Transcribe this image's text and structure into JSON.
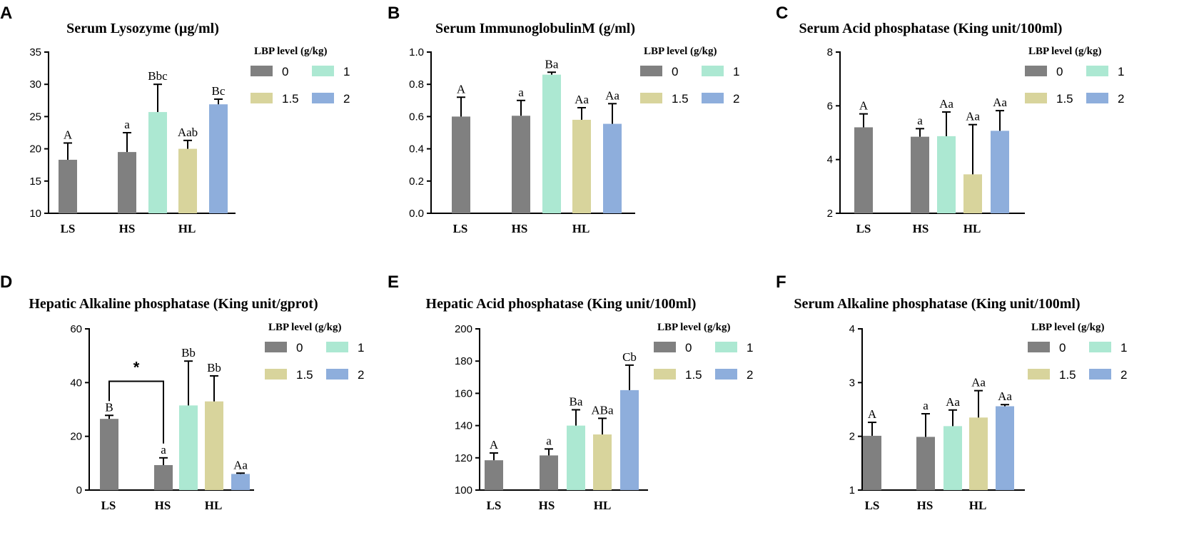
{
  "legend": {
    "title": "LBP level (g/kg)",
    "levels": [
      "0",
      "1",
      "1.5",
      "2"
    ]
  },
  "colors": {
    "0": "#808080",
    "1": "#ace8d2",
    "1.5": "#d8d49c",
    "2": "#8eaedc"
  },
  "chart_data": [
    {
      "panel": "A",
      "type": "bar",
      "title": "Serum Lysozyme (µg/ml)",
      "categories": [
        "LS",
        "HS",
        "HL"
      ],
      "ylim": [
        10,
        35
      ],
      "yticks": [
        "10",
        "15",
        "20",
        "25",
        "30",
        "35"
      ],
      "bars": [
        {
          "category": "LS",
          "level": "0",
          "value": 18.3,
          "error": 2.6,
          "label": "A"
        },
        {
          "category": "HS",
          "level": "0",
          "value": 19.5,
          "error": 3.0,
          "label": "a"
        },
        {
          "category": "HL",
          "level": "1",
          "value": 25.7,
          "error": 4.3,
          "label": "Bbc"
        },
        {
          "category": "HL",
          "level": "1.5",
          "value": 20.0,
          "error": 1.3,
          "label": "Aab"
        },
        {
          "category": "HL",
          "level": "2",
          "value": 26.9,
          "error": 0.8,
          "label": "Bc"
        }
      ]
    },
    {
      "panel": "B",
      "type": "bar",
      "title": "Serum ImmunoglobulinM (g/ml)",
      "categories": [
        "LS",
        "HS",
        "HL"
      ],
      "ylim": [
        0,
        1.0
      ],
      "yticks": [
        "0.0",
        "0.2",
        "0.4",
        "0.6",
        "0.8",
        "1.0"
      ],
      "bars": [
        {
          "category": "LS",
          "level": "0",
          "value": 0.6,
          "error": 0.12,
          "label": "A"
        },
        {
          "category": "HS",
          "level": "0",
          "value": 0.605,
          "error": 0.095,
          "label": "a"
        },
        {
          "category": "HL",
          "level": "1",
          "value": 0.86,
          "error": 0.015,
          "label": "Ba"
        },
        {
          "category": "HL",
          "level": "1.5",
          "value": 0.58,
          "error": 0.075,
          "label": "Aa"
        },
        {
          "category": "HL",
          "level": "2",
          "value": 0.555,
          "error": 0.125,
          "label": "Aa"
        }
      ]
    },
    {
      "panel": "C",
      "type": "bar",
      "title": "Serum Acid phosphatase (King unit/100ml)",
      "categories": [
        "LS",
        "HS",
        "HL"
      ],
      "ylim": [
        2,
        8
      ],
      "yticks": [
        "2",
        "4",
        "6",
        "8"
      ],
      "bars": [
        {
          "category": "LS",
          "level": "0",
          "value": 5.2,
          "error": 0.5,
          "label": "A"
        },
        {
          "category": "HS",
          "level": "0",
          "value": 4.85,
          "error": 0.3,
          "label": "a"
        },
        {
          "category": "HL",
          "level": "1",
          "value": 4.87,
          "error": 0.9,
          "label": "Aa"
        },
        {
          "category": "HL",
          "level": "1.5",
          "value": 3.45,
          "error": 1.85,
          "label": "Aa"
        },
        {
          "category": "HL",
          "level": "2",
          "value": 5.07,
          "error": 0.75,
          "label": "Aa"
        }
      ]
    },
    {
      "panel": "D",
      "type": "bar",
      "title": "Hepatic Alkaline phosphatase (King unit/gprot)",
      "categories": [
        "LS",
        "HS",
        "HL"
      ],
      "ylim": [
        0,
        60
      ],
      "yticks": [
        "0",
        "20",
        "40",
        "60"
      ],
      "significance": {
        "between": [
          "LS",
          "HS"
        ],
        "label": "*"
      },
      "bars": [
        {
          "category": "LS",
          "level": "0",
          "value": 26.5,
          "error": 1.3,
          "label": "B"
        },
        {
          "category": "HS",
          "level": "0",
          "value": 9.3,
          "error": 2.7,
          "label": "a"
        },
        {
          "category": "HL",
          "level": "1",
          "value": 31.5,
          "error": 16.5,
          "label": "Bb"
        },
        {
          "category": "HL",
          "level": "1.5",
          "value": 33.0,
          "error": 9.5,
          "label": "Bb"
        },
        {
          "category": "HL",
          "level": "2",
          "value": 6.0,
          "error": 0.3,
          "label": "Aa"
        }
      ]
    },
    {
      "panel": "E",
      "type": "bar",
      "title": "Hepatic Acid phosphatase (King unit/100ml)",
      "categories": [
        "LS",
        "HS",
        "HL"
      ],
      "ylim": [
        100,
        200
      ],
      "yticks": [
        "100",
        "120",
        "140",
        "160",
        "180",
        "200"
      ],
      "bars": [
        {
          "category": "LS",
          "level": "0",
          "value": 118.5,
          "error": 4.5,
          "label": "A"
        },
        {
          "category": "HS",
          "level": "0",
          "value": 121.5,
          "error": 4.0,
          "label": "a"
        },
        {
          "category": "HL",
          "level": "1",
          "value": 140.0,
          "error": 9.8,
          "label": "Ba"
        },
        {
          "category": "HL",
          "level": "1.5",
          "value": 134.5,
          "error": 10.0,
          "label": "ABa"
        },
        {
          "category": "HL",
          "level": "2",
          "value": 162.0,
          "error": 15.5,
          "label": "Cb"
        }
      ]
    },
    {
      "panel": "F",
      "type": "bar",
      "title": "Serum Alkaline phosphatase (King unit/100ml)",
      "categories": [
        "LS",
        "HS",
        "HL"
      ],
      "ylim": [
        1,
        4
      ],
      "yticks": [
        "1",
        "2",
        "3",
        "4"
      ],
      "bars": [
        {
          "category": "LS",
          "level": "0",
          "value": 2.01,
          "error": 0.25,
          "label": "A"
        },
        {
          "category": "HS",
          "level": "0",
          "value": 1.99,
          "error": 0.43,
          "label": "a"
        },
        {
          "category": "HL",
          "level": "1",
          "value": 2.19,
          "error": 0.3,
          "label": "Aa"
        },
        {
          "category": "HL",
          "level": "1.5",
          "value": 2.35,
          "error": 0.5,
          "label": "Aa"
        },
        {
          "category": "HL",
          "level": "2",
          "value": 2.56,
          "error": 0.03,
          "label": "Aa"
        }
      ]
    }
  ]
}
